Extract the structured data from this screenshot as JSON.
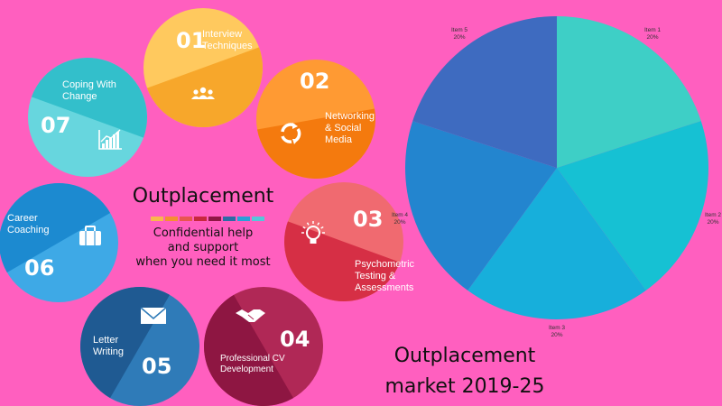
{
  "infographic": {
    "title": "Outplacement",
    "subtitle_lines": [
      "Confidential help",
      "and support",
      "when you need it most"
    ],
    "bar_colors": [
      "#F9B74B",
      "#F58F32",
      "#E8564F",
      "#C8283E",
      "#8F1744",
      "#2D6BA5",
      "#2A9FD8",
      "#55C6D9"
    ],
    "steps": [
      {
        "number": "01",
        "label_lines": [
          "Interview",
          "Techniques"
        ],
        "icon": "people-icon",
        "color_light": "#FFC95E",
        "color_dark": "#F7A72B"
      },
      {
        "number": "02",
        "label_lines": [
          "Networking",
          "& Social",
          "Media"
        ],
        "icon": "cycle-arrows-icon",
        "color_light": "#FF9A33",
        "color_dark": "#F47A0E"
      },
      {
        "number": "03",
        "label_lines": [
          "Psychometric",
          "Testing &",
          "Assessments"
        ],
        "icon": "lightbulb-icon",
        "color_light": "#F06A70",
        "color_dark": "#D62F45"
      },
      {
        "number": "04",
        "label_lines": [
          "Professional CV",
          "Development"
        ],
        "icon": "handshake-icon",
        "color_light": "#B02856",
        "color_dark": "#8E1642"
      },
      {
        "number": "05",
        "label_lines": [
          "Letter",
          "Writing"
        ],
        "icon": "envelope-icon",
        "color_light": "#2F7BB8",
        "color_dark": "#1F5A92"
      },
      {
        "number": "06",
        "label_lines": [
          "Career",
          "Coaching"
        ],
        "icon": "briefcase-icon",
        "color_light": "#3EA9E6",
        "color_dark": "#1C8AD0"
      },
      {
        "number": "07",
        "label_lines": [
          "Coping With",
          "Change"
        ],
        "icon": "bar-chart-icon",
        "color_light": "#67D6DE",
        "color_dark": "#33BFCB"
      }
    ]
  },
  "market": {
    "title_lines": [
      "Outplacement",
      "market 2019-25"
    ]
  },
  "chart_data": {
    "type": "pie",
    "slices": [
      {
        "label": "Item 1",
        "value": 20,
        "value_label": "20%",
        "color": "#3ECFC6"
      },
      {
        "label": "Item 2",
        "value": 20,
        "value_label": "20%",
        "color": "#16C1D3"
      },
      {
        "label": "Item 3",
        "value": 20,
        "value_label": "20%",
        "color": "#17AFDB"
      },
      {
        "label": "Item 4",
        "value": 20,
        "value_label": "20%",
        "color": "#2385CF"
      },
      {
        "label": "Item 5",
        "value": 20,
        "value_label": "20%",
        "color": "#3E6BC0"
      }
    ]
  }
}
